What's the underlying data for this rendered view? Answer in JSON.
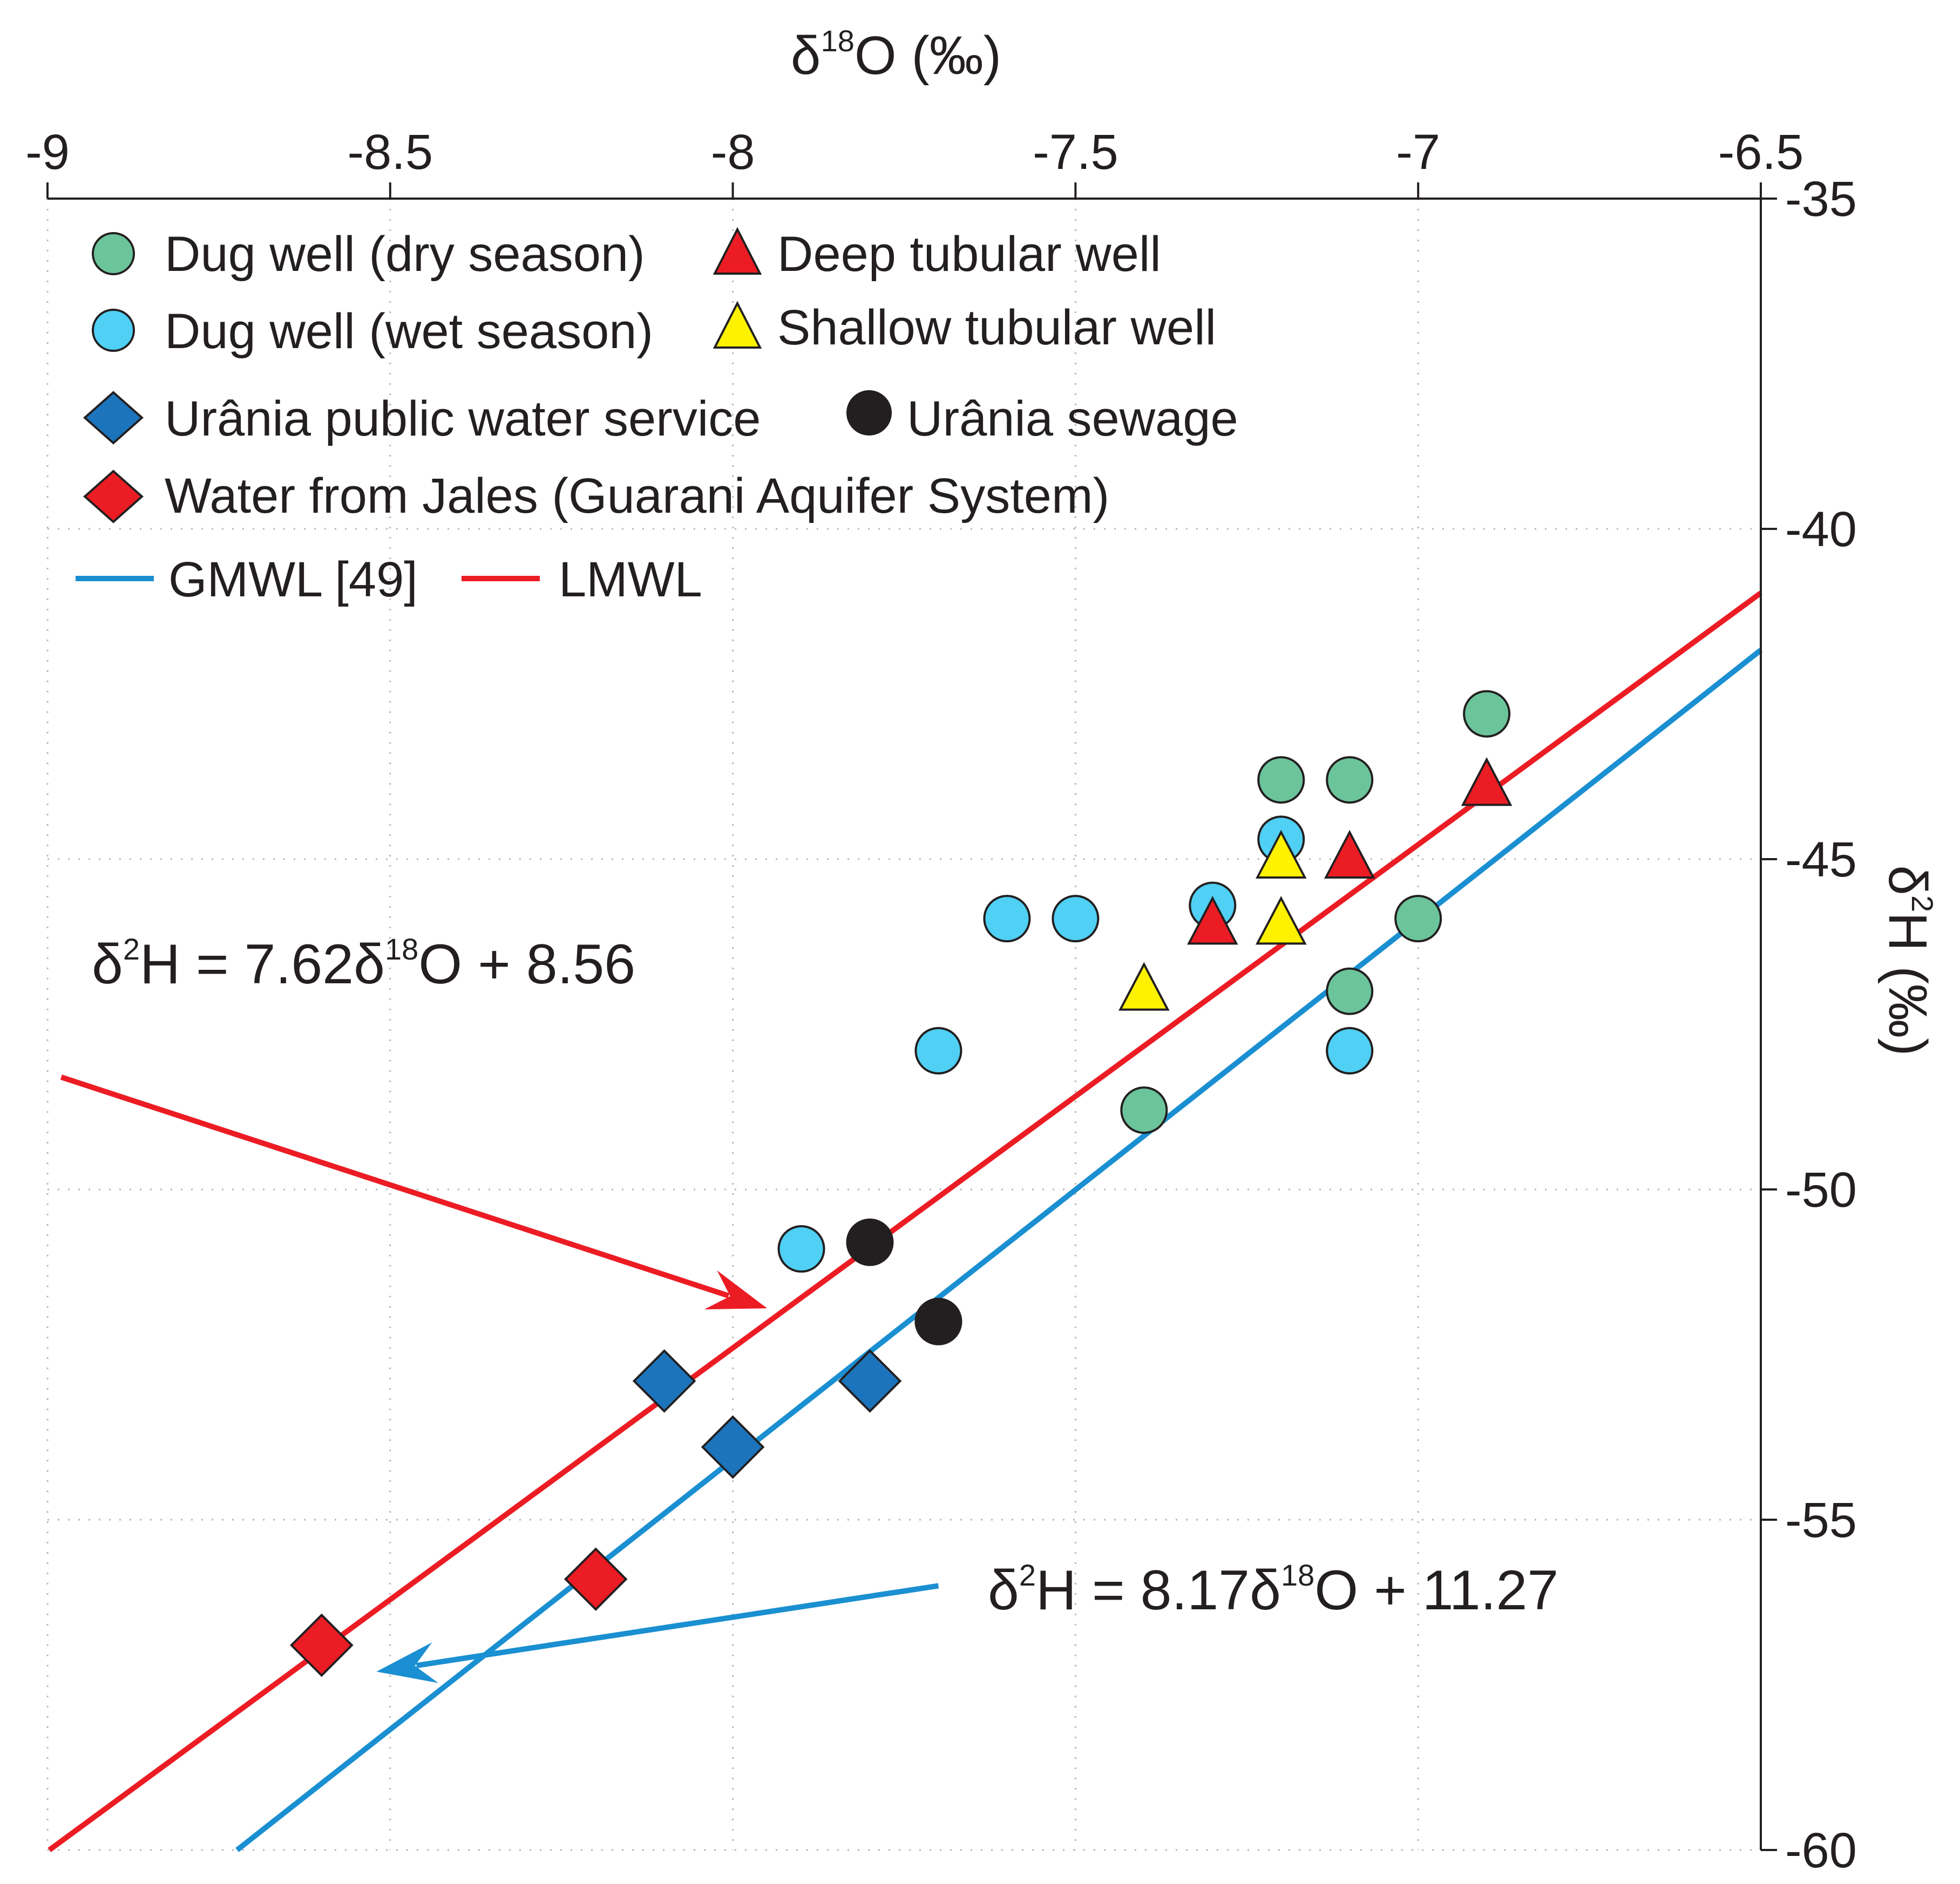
{
  "chart_data": {
    "type": "scatter",
    "x_axis": {
      "label": "δ¹⁸O (‰)",
      "label_main": "δ",
      "label_sup": "18",
      "label_rest": "O (‰)",
      "position": "top",
      "range": [
        -9,
        -6.5
      ],
      "ticks": [
        -9,
        -8.5,
        -8,
        -7.5,
        -7,
        -6.5
      ],
      "tick_labels": [
        "-9",
        "-8.5",
        "-8",
        "-7.5",
        "-7",
        "-6.5"
      ]
    },
    "y_axis": {
      "label": "δ²H (‰)",
      "label_main": "δ",
      "label_sup": "2",
      "label_rest": "H (‰)",
      "position": "right",
      "range": [
        -60,
        -35
      ],
      "ticks": [
        -35,
        -40,
        -45,
        -50,
        -55,
        -60
      ],
      "tick_labels": [
        "-35",
        "-40",
        "-45",
        "-50",
        "-55",
        "-60"
      ]
    },
    "grid": "dotted",
    "legend": {
      "placement": "top-left",
      "entries": {
        "dug_dry": "Dug well (dry season)",
        "deep": "Deep tubular well",
        "dug_wet": "Dug well (wet season)",
        "shallow": "Shallow tubular well",
        "public": "Urânia public water service",
        "sewage": "Urânia sewage",
        "jales": "Water from Jales (Guarani Aquifer System)",
        "gmwl": "GMWL [49]",
        "lmwl": "LMWL"
      }
    },
    "series": [
      {
        "name": "Dug well (dry season)",
        "marker": "circle",
        "color": "#6cc49a",
        "points": [
          [
            -6.9,
            -42.8
          ],
          [
            -7.2,
            -43.8
          ],
          [
            -7.1,
            -43.8
          ],
          [
            -7.0,
            -45.9
          ],
          [
            -7.1,
            -47.0
          ],
          [
            -7.4,
            -48.8
          ]
        ]
      },
      {
        "name": "Dug well (wet season)",
        "marker": "circle",
        "color": "#4fd0f4",
        "points": [
          [
            -7.6,
            -45.9
          ],
          [
            -7.5,
            -45.9
          ],
          [
            -7.3,
            -45.7
          ],
          [
            -7.2,
            -44.7
          ],
          [
            -7.7,
            -47.9
          ],
          [
            -7.1,
            -47.9
          ],
          [
            -7.9,
            -50.9
          ]
        ]
      },
      {
        "name": "Deep tubular well",
        "marker": "triangle",
        "color": "#ec1c24",
        "points": [
          [
            -6.9,
            -43.9
          ],
          [
            -7.1,
            -45.0
          ],
          [
            -7.3,
            -46.0
          ]
        ]
      },
      {
        "name": "Shallow tubular well",
        "marker": "triangle",
        "color": "#fff200",
        "points": [
          [
            -7.2,
            -45.0
          ],
          [
            -7.2,
            -46.0
          ],
          [
            -7.4,
            -47.0
          ]
        ]
      },
      {
        "name": "Urânia public water service",
        "marker": "diamond",
        "color": "#1c75bc",
        "points": [
          [
            -8.1,
            -52.9
          ],
          [
            -7.8,
            -52.9
          ],
          [
            -8.0,
            -53.9
          ]
        ]
      },
      {
        "name": "Urânia sewage",
        "marker": "circle",
        "color": "#231f20",
        "points": [
          [
            -7.8,
            -50.8
          ],
          [
            -7.7,
            -52.0
          ]
        ]
      },
      {
        "name": "Water from Jales (Guarani Aquifer System)",
        "marker": "diamond",
        "color": "#ec1c24",
        "points": [
          [
            -8.2,
            -55.9
          ],
          [
            -8.6,
            -56.9
          ]
        ]
      }
    ],
    "lines": [
      {
        "name": "GMWL [49]",
        "color": "#1a8fd1",
        "slope": 8.17,
        "intercept": 11.27,
        "x_range": [
          -8.75,
          -6.5
        ]
      },
      {
        "name": "LMWL",
        "color": "#ec1c24",
        "slope": 7.62,
        "intercept": 8.56,
        "x_range": [
          -9.0,
          -6.5
        ]
      }
    ],
    "annotations": [
      {
        "id": "lmwl_eq",
        "text": "δ²H = 7.62δ¹⁸O + 8.56",
        "a": "δ",
        "sup1": "2",
        "b": "H = 7.62δ",
        "sup2": "18",
        "c": "O + 8.56",
        "color": "#ec1c24",
        "arrow_from": [
          -8.98,
          -48.3
        ],
        "arrow_to": [
          -7.95,
          -51.8
        ]
      },
      {
        "id": "gmwl_eq",
        "text": "δ²H = 8.17δ¹⁸O + 11.27",
        "a": "δ",
        "sup1": "2",
        "b": "H = 8.17δ",
        "sup2": "18",
        "c": "O + 11.27",
        "color": "#1a8fd1",
        "arrow_from": [
          -7.7,
          -56.0
        ],
        "arrow_to": [
          -8.52,
          -57.3
        ]
      }
    ]
  }
}
